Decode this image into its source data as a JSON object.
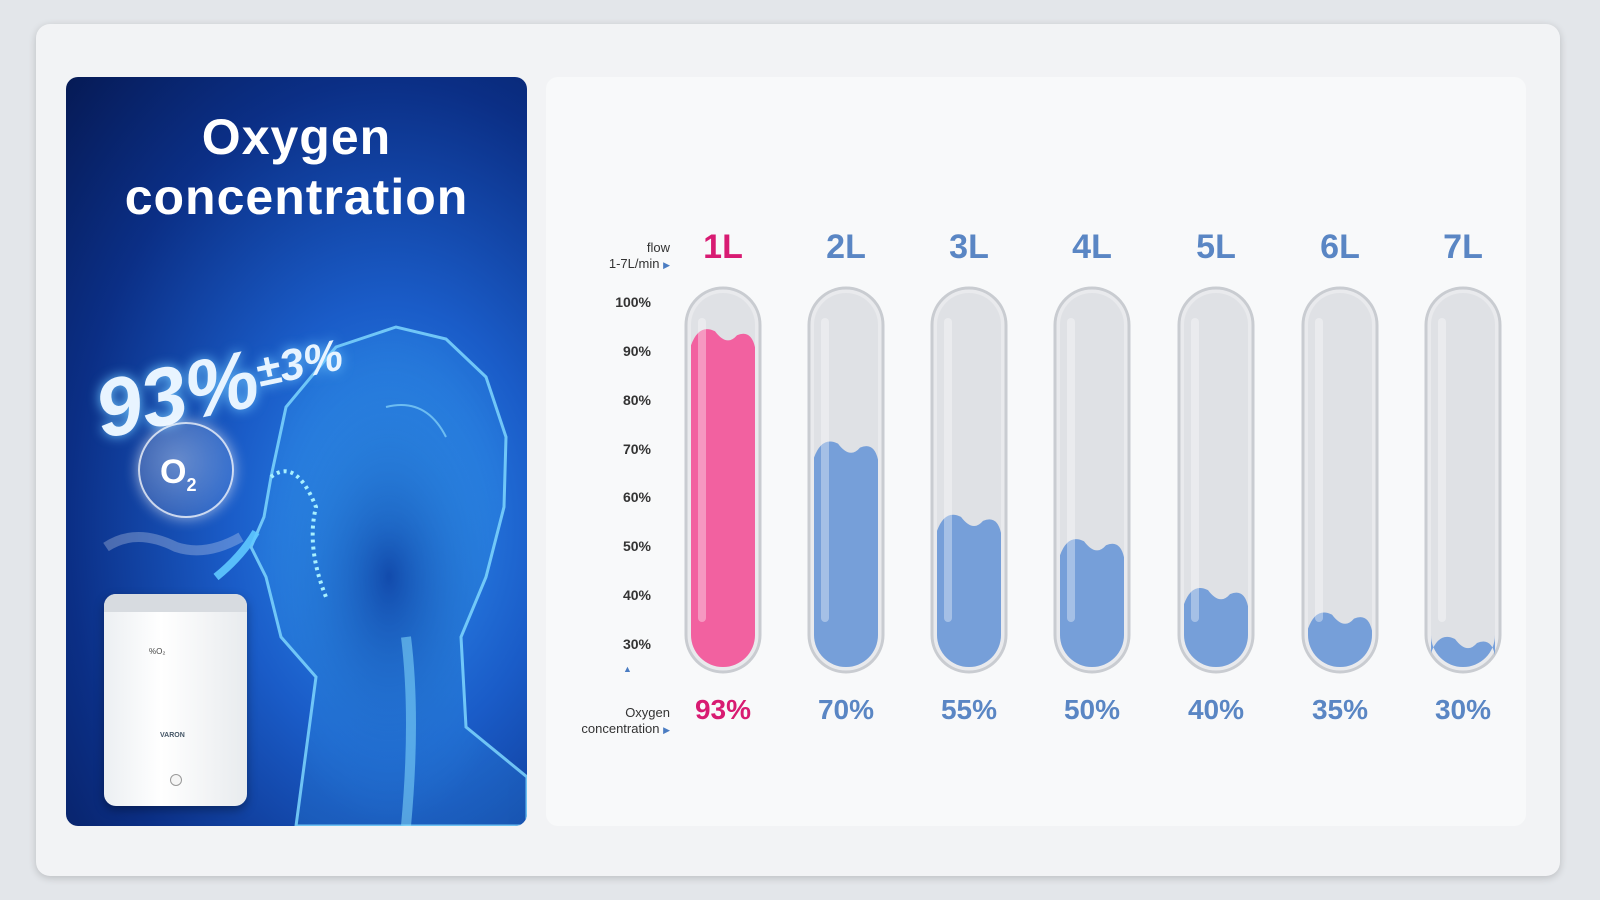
{
  "left_panel": {
    "title_line1": "Oxygen",
    "title_line2": "concentration",
    "headline_value": "93%",
    "headline_tolerance": "±3%",
    "bubble_label": "O",
    "bubble_sub": "2",
    "device_brand": "VARON",
    "device_readout": "%O₂"
  },
  "chart_data": {
    "type": "bar",
    "categories": [
      "1L",
      "2L",
      "3L",
      "4L",
      "5L",
      "6L",
      "7L"
    ],
    "values": [
      93,
      70,
      55,
      50,
      40,
      35,
      30
    ],
    "value_labels": [
      "93%",
      "70%",
      "55%",
      "50%",
      "40%",
      "35%",
      "30%"
    ],
    "flow_label_line1": "flow",
    "flow_label_line2": "1-7L/min",
    "concentration_label_line1": "Oxygen",
    "concentration_label_line2": "concentration",
    "y_ticks": [
      "100%",
      "90%",
      "80%",
      "70%",
      "60%",
      "50%",
      "40%",
      "30%"
    ],
    "ylim": [
      30,
      100
    ],
    "highlight_index": 0,
    "colors": {
      "highlight": "#d81b72",
      "normal": "#5a86c4",
      "highlight_fill": "#f25a9c",
      "normal_fill": "#5b8fd6"
    }
  }
}
